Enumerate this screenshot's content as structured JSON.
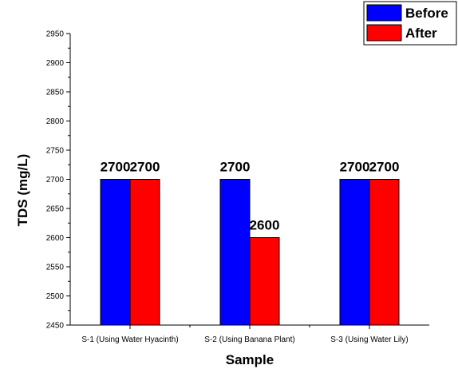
{
  "chart_data": {
    "type": "bar",
    "categories": [
      "S-1 (Using Water Hyacinth)",
      "S-2 (Using Banana Plant)",
      "S-3 (Using Water Lily)"
    ],
    "series": [
      {
        "name": "Before",
        "values": [
          2700,
          2700,
          2700
        ],
        "color": "#0000ff"
      },
      {
        "name": "After",
        "values": [
          2700,
          2600,
          2700
        ],
        "color": "#ff0000"
      }
    ],
    "title": "",
    "xlabel": "Sample",
    "ylabel": "TDS (mg/L)",
    "ylim": [
      2450,
      2950
    ],
    "yticks": [
      2450,
      2500,
      2550,
      2600,
      2650,
      2700,
      2750,
      2800,
      2850,
      2900,
      2950
    ],
    "legend_position": "top-right",
    "grid": false,
    "data_labels": true
  }
}
